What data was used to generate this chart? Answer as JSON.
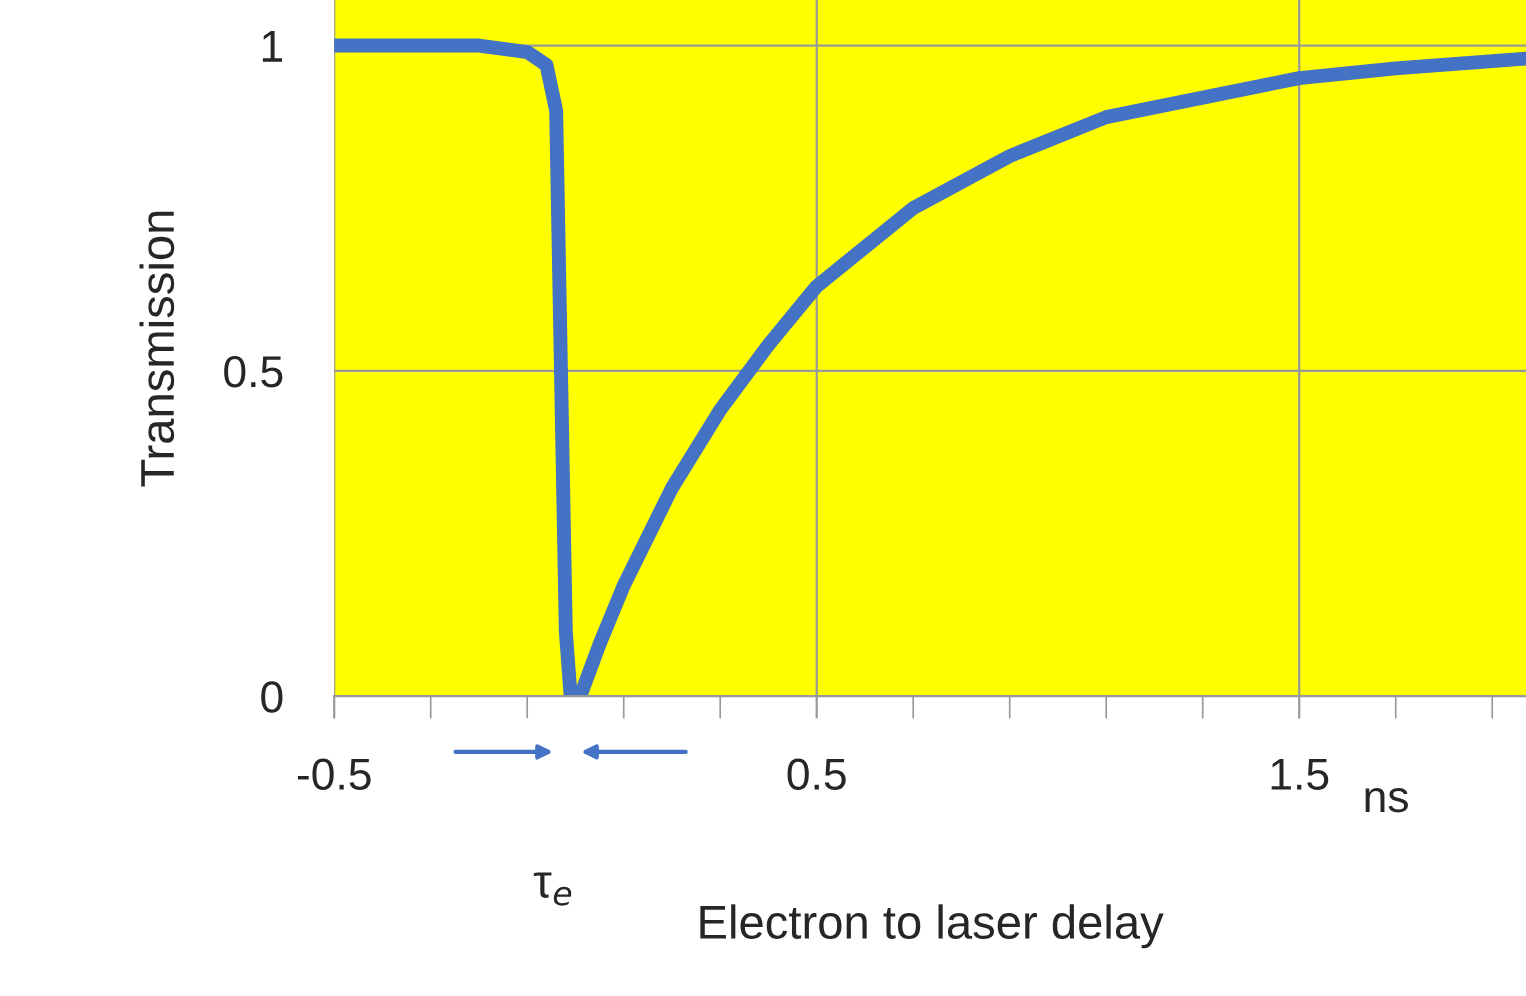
{
  "chart_data": {
    "type": "line",
    "xlabel": "Electron to laser delay",
    "ylabel": "Transmission",
    "x": [
      -0.5,
      -0.3,
      -0.2,
      -0.1,
      -0.06,
      -0.04,
      -0.03,
      -0.02,
      -0.01,
      0.0,
      0.01,
      0.05,
      0.1,
      0.2,
      0.3,
      0.4,
      0.5,
      0.7,
      0.9,
      1.1,
      1.3,
      1.5,
      1.7,
      1.97
    ],
    "series": [
      {
        "color": "#4472c4",
        "values": [
          1,
          1,
          1,
          0.99,
          0.97,
          0.9,
          0.5,
          0.1,
          0,
          0,
          0,
          0.08,
          0.17,
          0.32,
          0.44,
          0.54,
          0.63,
          0.75,
          0.83,
          0.89,
          0.92,
          0.95,
          0.965,
          0.98
        ]
      }
    ],
    "xlim": [
      -0.5,
      1.97
    ],
    "ylim": [
      0,
      1.07
    ],
    "xticks": [
      -0.5,
      {
        "value": -0.3,
        "label": null
      },
      {
        "value": -0.1,
        "label": null
      },
      {
        "value": 0.1,
        "label": null
      },
      {
        "value": 0.3,
        "label": null
      },
      0.5,
      {
        "value": 0.7,
        "label": null
      },
      {
        "value": 0.9,
        "label": null
      },
      {
        "value": 1.1,
        "label": null
      },
      {
        "value": 1.3,
        "label": null
      },
      1.5,
      {
        "value": 1.7,
        "label": null
      },
      {
        "value": 1.9,
        "label": null
      }
    ],
    "yticks": [
      0,
      0.5,
      1
    ],
    "grid": true,
    "marker": "none",
    "line_style": "solid",
    "annotations": [
      "τ$_{e}$",
      "ns"
    ]
  }
}
